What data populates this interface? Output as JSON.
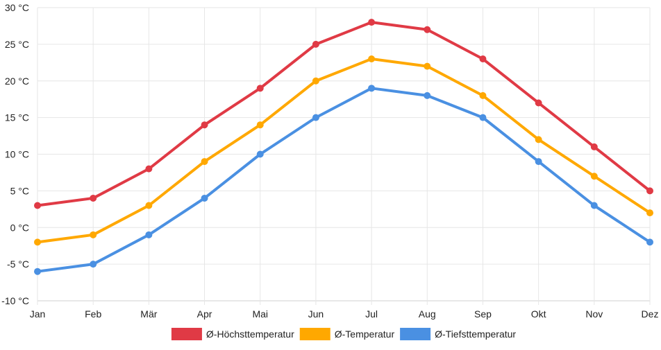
{
  "chart_data": {
    "type": "line",
    "title": "",
    "xlabel": "",
    "ylabel": "",
    "categories": [
      "Jan",
      "Feb",
      "Mär",
      "Apr",
      "Mai",
      "Jun",
      "Jul",
      "Aug",
      "Sep",
      "Okt",
      "Nov",
      "Dez"
    ],
    "ylim": [
      -10,
      30
    ],
    "y_ticks": [
      30,
      25,
      20,
      15,
      10,
      5,
      0,
      -5,
      -10
    ],
    "y_unit": "°C",
    "grid": true,
    "legend_position": "bottom-center",
    "series": [
      {
        "name": "Ø-Höchsttemperatur",
        "color": "#e03a45",
        "values": [
          3,
          4,
          8,
          14,
          19,
          25,
          28,
          27,
          23,
          17,
          11,
          5
        ]
      },
      {
        "name": "Ø-Temperatur",
        "color": "#ffa800",
        "values": [
          -2,
          -1,
          3,
          9,
          14,
          20,
          23,
          22,
          18,
          12,
          7,
          2
        ]
      },
      {
        "name": "Ø-Tiefsttemperatur",
        "color": "#4a90e2",
        "values": [
          -6,
          -5,
          -1,
          4,
          10,
          15,
          19,
          18,
          15,
          9,
          3,
          -2
        ]
      }
    ]
  }
}
